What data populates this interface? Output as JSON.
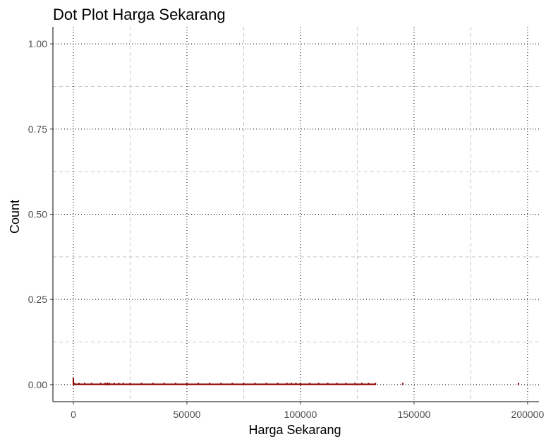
{
  "chart_data": {
    "type": "scatter",
    "title": "Dot Plot Harga Sekarang",
    "xlabel": "Harga Sekarang",
    "ylabel": "Count",
    "xlim": [
      -9000,
      205000
    ],
    "ylim": [
      -0.05,
      1.05
    ],
    "x_ticks": [
      0,
      50000,
      100000,
      150000,
      200000
    ],
    "x_tick_labels": [
      "0",
      "50000",
      "100000",
      "150000",
      "200000"
    ],
    "x_minor_ticks": [
      25000,
      75000,
      125000,
      175000
    ],
    "y_ticks": [
      0.0,
      0.25,
      0.5,
      0.75,
      1.0
    ],
    "y_tick_labels": [
      "0.00",
      "0.25",
      "0.50",
      "0.75",
      "1.00"
    ],
    "y_minor_ticks": [
      0.125,
      0.375,
      0.625,
      0.875
    ],
    "grid": true,
    "colors": {
      "dots": "#8b0000"
    },
    "dots": {
      "count_value": 0.003,
      "x": [
        500,
        2500,
        5000,
        8000,
        12000,
        14000,
        16000,
        18000,
        20000,
        22000,
        25000,
        30000,
        35000,
        40000,
        45000,
        50000,
        55000,
        60000,
        65000,
        70000,
        75000,
        80000,
        85000,
        90000,
        94000,
        96000,
        98000,
        100000,
        104000,
        108000,
        112000,
        116000,
        120000,
        124000,
        127000,
        130000,
        133000,
        145000,
        196000
      ],
      "spikes": [
        {
          "x": 0,
          "count": 0.02
        },
        {
          "x": 15000,
          "count": 0.006
        },
        {
          "x": 100000,
          "count": 0.004
        }
      ]
    }
  }
}
